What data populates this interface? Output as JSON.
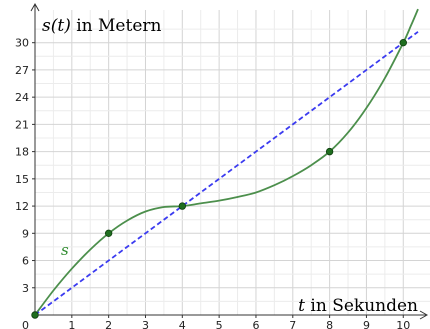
{
  "chart_data": {
    "type": "line",
    "xlabel": {
      "var": "t",
      "rest": " in Sekunden"
    },
    "ylabel": {
      "var": "s(t)",
      "rest": " in Metern"
    },
    "xlim": [
      0,
      10.4
    ],
    "ylim": [
      0,
      32.5
    ],
    "x_ticks": [
      1,
      2,
      3,
      4,
      5,
      6,
      7,
      8,
      9,
      10
    ],
    "y_ticks": [
      3,
      6,
      9,
      12,
      15,
      18,
      21,
      24,
      27,
      30
    ],
    "origin_label": "0",
    "grid": true,
    "series": [
      {
        "name": "s",
        "style": "solid",
        "color": "#4c8f4c",
        "x": [
          0,
          0.5,
          1,
          1.5,
          2,
          2.5,
          3,
          3.5,
          4,
          4.5,
          5,
          5.5,
          6,
          6.5,
          7,
          7.5,
          8,
          8.5,
          9,
          9.5,
          10,
          10.2,
          10.4
        ],
        "y": [
          0,
          2.7,
          5.1,
          7.2,
          9,
          10.4,
          11.4,
          11.9,
          12,
          12.3,
          12.6,
          13,
          13.5,
          14.3,
          15.3,
          16.5,
          18,
          20.1,
          22.8,
          26.1,
          30,
          31.8,
          33.7
        ]
      },
      {
        "name": "",
        "style": "dashed",
        "color": "#3b3bf0",
        "x": [
          0,
          10.4
        ],
        "y": [
          0,
          31.2
        ]
      }
    ],
    "points": [
      {
        "x": 0,
        "y": 0
      },
      {
        "x": 2,
        "y": 9
      },
      {
        "x": 4,
        "y": 12
      },
      {
        "x": 8,
        "y": 18
      },
      {
        "x": 10,
        "y": 30
      }
    ],
    "point_color": "#1f6e1f"
  }
}
